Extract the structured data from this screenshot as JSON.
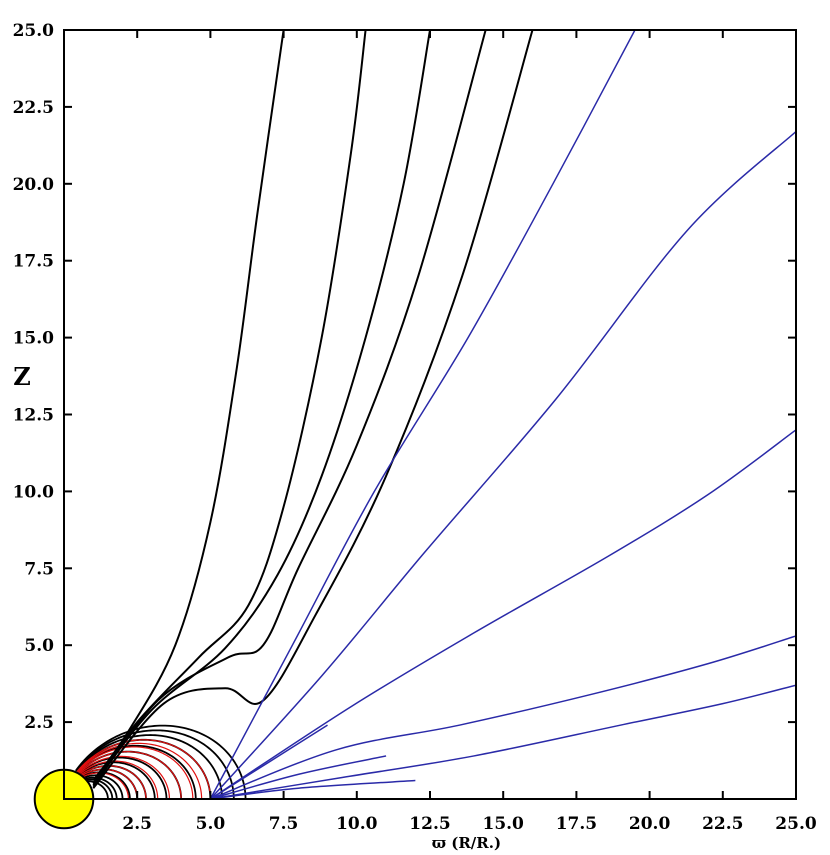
{
  "chart_data": {
    "type": "line",
    "title": "",
    "xlabel": "ϖ  (R/R.)",
    "ylabel": "Z",
    "xlim": [
      0,
      25
    ],
    "ylim": [
      0,
      25
    ],
    "xticks": [
      "2.5",
      "5.0",
      "7.5",
      "10.0",
      "12.5",
      "15.0",
      "17.5",
      "20.0",
      "22.5",
      "25.0"
    ],
    "yticks": [
      "2.5",
      "5.0",
      "7.5",
      "10.0",
      "12.5",
      "15.0",
      "17.5",
      "20.0",
      "22.5",
      "25.0"
    ],
    "grid": false,
    "colors": {
      "open_field": "#000000",
      "wind": "#2a2aa8",
      "closed_inner": "#e01010",
      "star": "#ffff00",
      "star_edge": "#000000"
    },
    "star": {
      "center": [
        0,
        0
      ],
      "radius": 1
    },
    "series": [
      {
        "kind": "open",
        "points": [
          [
            1,
            0.6
          ],
          [
            2.2,
            2.2
          ],
          [
            3.8,
            5.0
          ],
          [
            5.0,
            9
          ],
          [
            5.9,
            14
          ],
          [
            6.6,
            19
          ],
          [
            7.5,
            25
          ]
        ]
      },
      {
        "kind": "open",
        "points": [
          [
            1,
            0.5
          ],
          [
            2.5,
            2.5
          ],
          [
            4.6,
            4.6
          ],
          [
            6.3,
            6.3
          ],
          [
            7.5,
            9.5
          ],
          [
            8.8,
            15
          ],
          [
            9.8,
            21
          ],
          [
            10.3,
            25
          ]
        ]
      },
      {
        "kind": "open",
        "points": [
          [
            1,
            0.45
          ],
          [
            3,
            2.9
          ],
          [
            5.5,
            4.9
          ],
          [
            7.3,
            7.3
          ],
          [
            8.8,
            10.5
          ],
          [
            10.3,
            15
          ],
          [
            11.6,
            20
          ],
          [
            12.5,
            25
          ]
        ]
      },
      {
        "kind": "open",
        "points": [
          [
            1,
            0.4
          ],
          [
            3.2,
            3.2
          ],
          [
            5.6,
            4.6
          ],
          [
            6.8,
            5
          ],
          [
            8.0,
            7.5
          ],
          [
            10,
            11.5
          ],
          [
            12.1,
            17
          ],
          [
            14.4,
            25
          ]
        ]
      },
      {
        "kind": "open",
        "points": [
          [
            1,
            0.35
          ],
          [
            3.4,
            3.1
          ],
          [
            5.5,
            3.6
          ],
          [
            6.8,
            3.2
          ],
          [
            8.6,
            6
          ],
          [
            11,
            10.5
          ],
          [
            13.6,
            17
          ],
          [
            16,
            25
          ]
        ]
      },
      {
        "kind": "wind",
        "points": [
          [
            5,
            0
          ],
          [
            7.8,
            5
          ],
          [
            10.6,
            10
          ],
          [
            13.8,
            15
          ],
          [
            16.7,
            20
          ],
          [
            19.5,
            25
          ]
        ]
      },
      {
        "kind": "wind",
        "points": [
          [
            5,
            0
          ],
          [
            8.8,
            4
          ],
          [
            12.3,
            8
          ],
          [
            16.8,
            13
          ],
          [
            21.3,
            18.5
          ],
          [
            25,
            21.7
          ]
        ]
      },
      {
        "kind": "wind",
        "points": [
          [
            5,
            0
          ],
          [
            9.8,
            3
          ],
          [
            14,
            5.4
          ],
          [
            18.6,
            7.9
          ],
          [
            22,
            9.9
          ],
          [
            25,
            12
          ]
        ]
      },
      {
        "kind": "wind",
        "points": [
          [
            5,
            0
          ],
          [
            9.3,
            1.6
          ],
          [
            13.5,
            2.4
          ],
          [
            18,
            3.4
          ],
          [
            22,
            4.4
          ],
          [
            25,
            5.3
          ]
        ]
      },
      {
        "kind": "wind",
        "points": [
          [
            5,
            0
          ],
          [
            9.5,
            0.7
          ],
          [
            14,
            1.4
          ],
          [
            19,
            2.4
          ],
          [
            22.5,
            3.1
          ],
          [
            25,
            3.7
          ]
        ]
      },
      {
        "kind": "wind",
        "points": [
          [
            5,
            0
          ],
          [
            8,
            0.8
          ],
          [
            11,
            1.4
          ]
        ]
      },
      {
        "kind": "wind",
        "points": [
          [
            5,
            0
          ],
          [
            7,
            1.2
          ],
          [
            9,
            2.4
          ]
        ]
      },
      {
        "kind": "wind",
        "points": [
          [
            5,
            0
          ],
          [
            8,
            0.35
          ],
          [
            12,
            0.6
          ]
        ]
      }
    ],
    "closed_loops_black": [
      1.5,
      1.65,
      1.8,
      2.0,
      2.25,
      2.5,
      2.8,
      3.1,
      3.5,
      4.0,
      4.5,
      5.0,
      5.4,
      5.8,
      6.2
    ],
    "closed_loops_red": [
      2.2,
      2.5,
      2.8,
      3.2,
      3.6,
      4.0,
      4.4,
      4.7,
      5.0
    ]
  }
}
